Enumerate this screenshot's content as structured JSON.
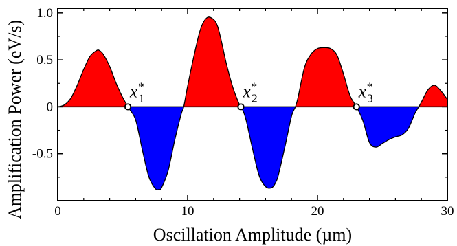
{
  "chart_data": {
    "type": "area",
    "title": "",
    "xlabel": "Oscillation Amplitude (µm)",
    "ylabel": "Amplification Power (eV/s)",
    "xlim": [
      0,
      30
    ],
    "ylim": [
      -1.0,
      1.05
    ],
    "x_ticks": [
      {
        "value": 0,
        "label": "0"
      },
      {
        "value": 10,
        "label": "10"
      },
      {
        "value": 20,
        "label": "20"
      },
      {
        "value": 30,
        "label": "30"
      }
    ],
    "y_ticks": [
      {
        "value": 1.0,
        "label": "1.0"
      },
      {
        "value": 0.5,
        "label": "0.5"
      },
      {
        "value": 0,
        "label": "0"
      },
      {
        "value": -0.5,
        "label": "-0.5"
      }
    ],
    "grid": false,
    "legend": "none",
    "positive_color": "#ff0000",
    "negative_color": "#0000ff",
    "line_color": "#000000",
    "series": [
      {
        "x": [
          0,
          0.5,
          1.0,
          1.5,
          2.0,
          2.5,
          3.0,
          3.2,
          3.5,
          4.0,
          4.5,
          5.0,
          5.5,
          6.0,
          6.5,
          7.0,
          7.5,
          7.8,
          8.0,
          8.5,
          9.0,
          9.5,
          9.7,
          10.0,
          10.5,
          11.0,
          11.5,
          12.0,
          12.3,
          12.6,
          13.0,
          13.5,
          14.0,
          14.2,
          14.5,
          15.0,
          15.5,
          16.0,
          16.5,
          16.8,
          17.0,
          17.5,
          18.0,
          18.3,
          18.5,
          19.0,
          19.5,
          20.0,
          20.5,
          21.0,
          21.5,
          22.0,
          22.5,
          23.0,
          23.5,
          24.0,
          24.5,
          25.0,
          25.5,
          26.0,
          26.5,
          27.0,
          27.5,
          27.8,
          28.0,
          28.5,
          29.0,
          29.5,
          30.0,
          30.5
        ],
        "y": [
          0,
          0.02,
          0.09,
          0.23,
          0.4,
          0.54,
          0.6,
          0.6,
          0.56,
          0.43,
          0.25,
          0.1,
          -0.02,
          -0.14,
          -0.45,
          -0.74,
          -0.87,
          -0.88,
          -0.86,
          -0.68,
          -0.36,
          -0.08,
          0,
          0.22,
          0.55,
          0.83,
          0.95,
          0.93,
          0.86,
          0.7,
          0.45,
          0.2,
          0.02,
          -0.02,
          -0.14,
          -0.45,
          -0.73,
          -0.85,
          -0.86,
          -0.8,
          -0.72,
          -0.42,
          -0.1,
          0,
          0.1,
          0.42,
          0.56,
          0.62,
          0.63,
          0.62,
          0.55,
          0.35,
          0.12,
          0,
          -0.15,
          -0.38,
          -0.43,
          -0.39,
          -0.35,
          -0.32,
          -0.3,
          -0.23,
          -0.07,
          0,
          0.05,
          0.18,
          0.23,
          0.17,
          0.08,
          0
        ]
      }
    ],
    "annotations": [
      {
        "text": "x",
        "subscript": "1",
        "superscript": "*",
        "x": 5.4,
        "y": 0
      },
      {
        "text": "x",
        "subscript": "2",
        "superscript": "*",
        "x": 14.1,
        "y": 0
      },
      {
        "text": "x",
        "subscript": "3",
        "superscript": "*",
        "x": 23.0,
        "y": 0
      }
    ]
  }
}
